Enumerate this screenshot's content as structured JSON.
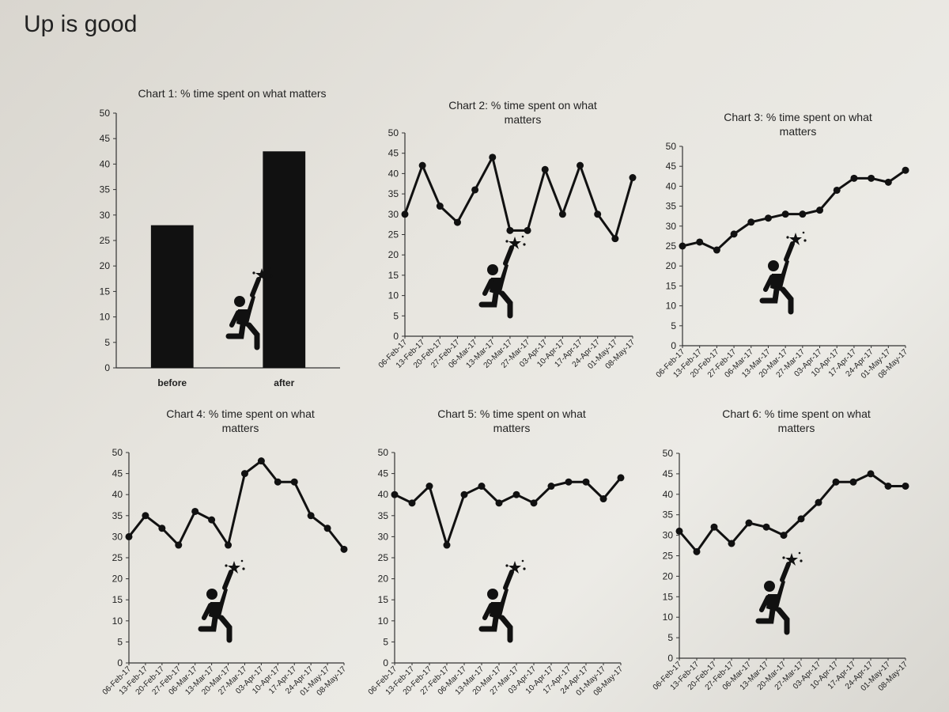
{
  "page": {
    "title": "Up is good"
  },
  "icon": "reaching-person-star-icon",
  "chart_data": [
    {
      "id": "chart1",
      "type": "bar",
      "title": "Chart 1: % time spent on what matters",
      "categories": [
        "before",
        "after"
      ],
      "values": [
        28,
        42.5
      ],
      "ylim": [
        0,
        50
      ],
      "yticks": [
        0,
        5,
        10,
        15,
        20,
        25,
        30,
        35,
        40,
        45,
        50
      ],
      "grid": false,
      "color": "#111111"
    },
    {
      "id": "chart2",
      "type": "line",
      "title": "Chart 2: % time spent on what matters",
      "x": [
        "06-Feb-17",
        "13-Feb-17",
        "20-Feb-17",
        "27-Feb-17",
        "06-Mar-17",
        "13-Mar-17",
        "20-Mar-17",
        "27-Mar-17",
        "03-Apr-17",
        "10-Apr-17",
        "17-Apr-17",
        "24-Apr-17",
        "01-May-17",
        "08-May-17"
      ],
      "values": [
        30,
        42,
        32,
        28,
        36,
        44,
        26,
        26,
        41,
        30,
        42,
        30,
        24,
        39
      ],
      "ylim": [
        0,
        50
      ],
      "yticks": [
        0,
        5,
        10,
        15,
        20,
        25,
        30,
        35,
        40,
        45,
        50
      ],
      "grid": false,
      "color": "#111111"
    },
    {
      "id": "chart3",
      "type": "line",
      "title": "Chart 3: % time spent on what matters",
      "x": [
        "06-Feb-17",
        "13-Feb-17",
        "20-Feb-17",
        "27-Feb-17",
        "06-Mar-17",
        "13-Mar-17",
        "20-Mar-17",
        "27-Mar-17",
        "03-Apr-17",
        "10-Apr-17",
        "17-Apr-17",
        "24-Apr-17",
        "01-May-17",
        "08-May-17"
      ],
      "values": [
        25,
        26,
        24,
        28,
        31,
        32,
        33,
        33,
        34,
        39,
        42,
        42,
        41,
        44
      ],
      "ylim": [
        0,
        50
      ],
      "yticks": [
        0,
        5,
        10,
        15,
        20,
        25,
        30,
        35,
        40,
        45,
        50
      ],
      "grid": false,
      "color": "#111111"
    },
    {
      "id": "chart4",
      "type": "line",
      "title": "Chart 4: % time spent on what matters",
      "x": [
        "06-Feb-17",
        "13-Feb-17",
        "20-Feb-17",
        "27-Feb-17",
        "06-Mar-17",
        "13-Mar-17",
        "20-Mar-17",
        "27-Mar-17",
        "03-Apr-17",
        "10-Apr-17",
        "17-Apr-17",
        "24-Apr-17",
        "01-May-17",
        "08-May-17"
      ],
      "values": [
        30,
        35,
        32,
        28,
        36,
        34,
        28,
        45,
        48,
        43,
        43,
        35,
        32,
        27
      ],
      "ylim": [
        0,
        50
      ],
      "yticks": [
        0,
        5,
        10,
        15,
        20,
        25,
        30,
        35,
        40,
        45,
        50
      ],
      "grid": false,
      "color": "#111111"
    },
    {
      "id": "chart5",
      "type": "line",
      "title": "Chart 5: % time spent on what matters",
      "x": [
        "06-Feb-17",
        "13-Feb-17",
        "20-Feb-17",
        "27-Feb-17",
        "06-Mar-17",
        "13-Mar-17",
        "20-Mar-17",
        "27-Mar-17",
        "03-Apr-17",
        "10-Apr-17",
        "17-Apr-17",
        "24-Apr-17",
        "01-May-17",
        "08-May-17"
      ],
      "values": [
        40,
        38,
        42,
        28,
        40,
        42,
        38,
        40,
        38,
        42,
        43,
        43,
        39,
        44
      ],
      "ylim": [
        0,
        50
      ],
      "yticks": [
        0,
        5,
        10,
        15,
        20,
        25,
        30,
        35,
        40,
        45,
        50
      ],
      "grid": false,
      "color": "#111111"
    },
    {
      "id": "chart6",
      "type": "line",
      "title": "Chart 6: % time spent on what matters",
      "x": [
        "06-Feb-17",
        "13-Feb-17",
        "20-Feb-17",
        "27-Feb-17",
        "06-Mar-17",
        "13-Mar-17",
        "20-Mar-17",
        "27-Mar-17",
        "03-Apr-17",
        "10-Apr-17",
        "17-Apr-17",
        "24-Apr-17",
        "01-May-17",
        "08-May-17"
      ],
      "values": [
        31,
        26,
        32,
        28,
        33,
        32,
        30,
        34,
        38,
        43,
        43,
        45,
        42,
        42
      ],
      "ylim": [
        0,
        50
      ],
      "yticks": [
        0,
        5,
        10,
        15,
        20,
        25,
        30,
        35,
        40,
        45,
        50
      ],
      "grid": false,
      "color": "#111111"
    }
  ]
}
